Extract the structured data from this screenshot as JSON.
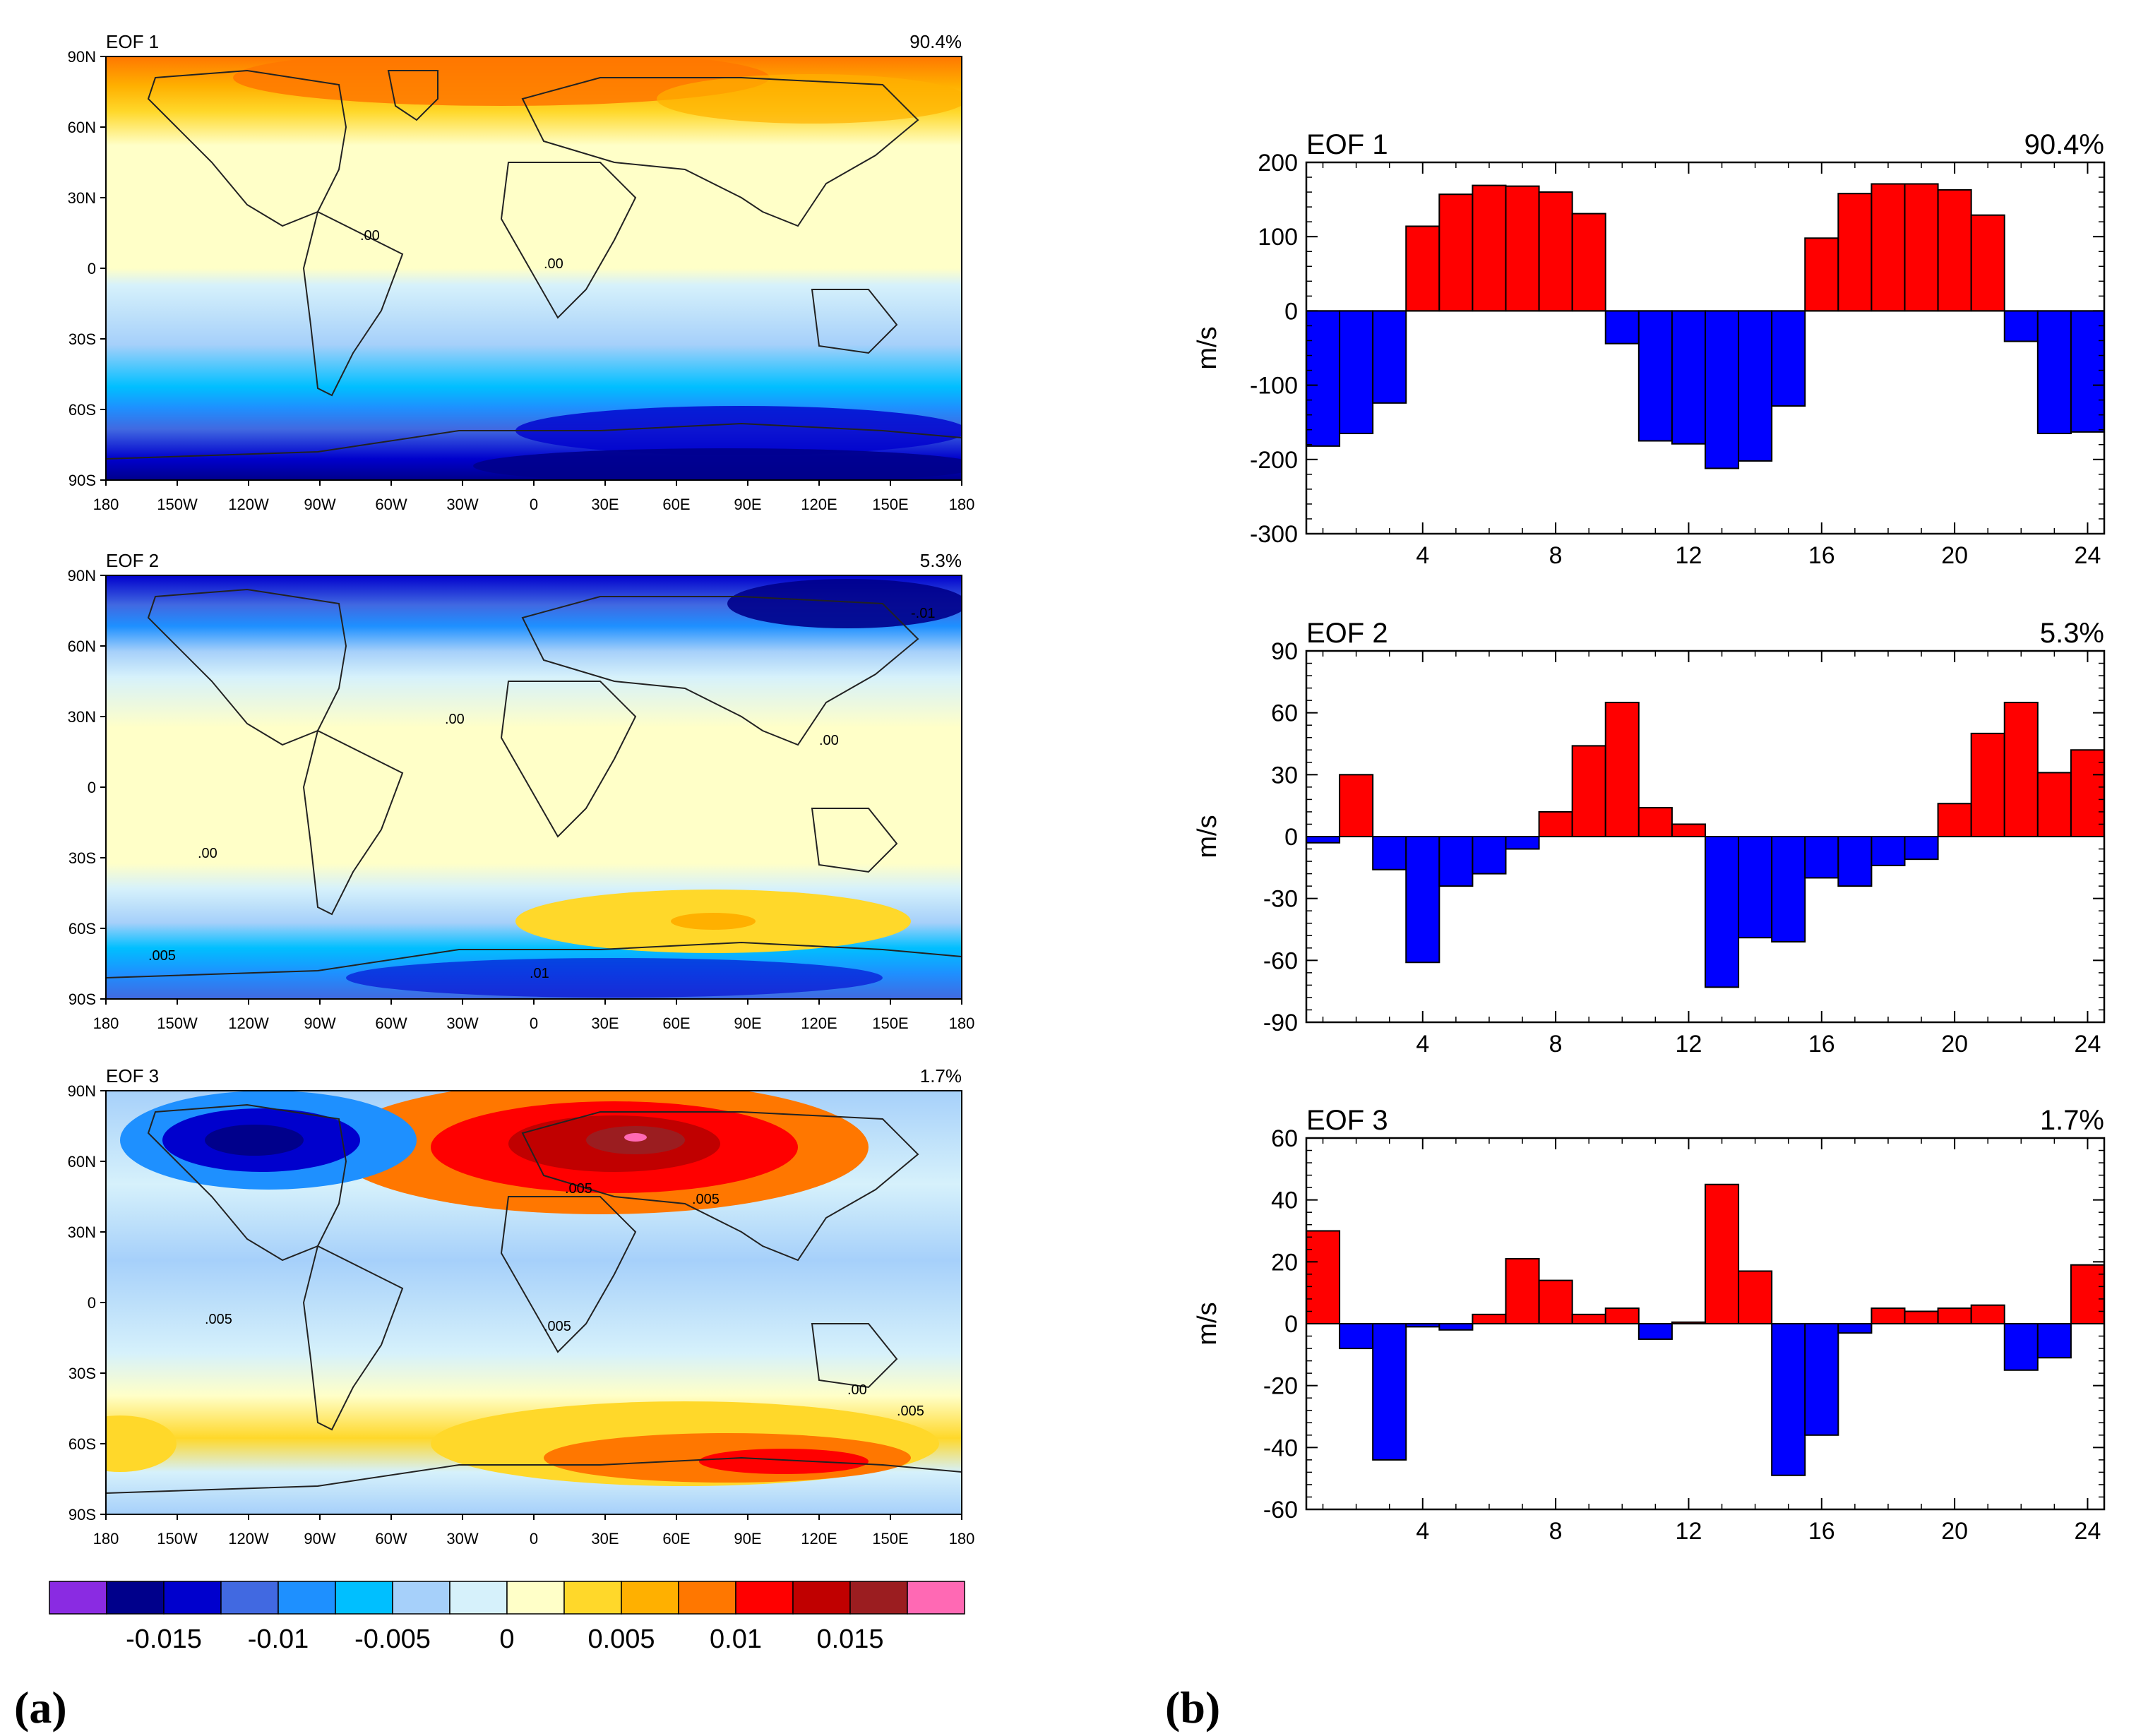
{
  "panel_labels": {
    "a": "(a)",
    "b": "(b)"
  },
  "maps": [
    {
      "title": "EOF 1",
      "percent": "90.4%",
      "contour_labels": [
        ".00",
        ".00"
      ]
    },
    {
      "title": "EOF 2",
      "percent": "5.3%",
      "contour_labels": [
        ".00",
        ".00",
        ".00",
        ".005",
        ".01",
        "-.01"
      ]
    },
    {
      "title": "EOF 3",
      "percent": "1.7%",
      "contour_labels": [
        ".005",
        ".005",
        ".005",
        ".005",
        ".00",
        ".005"
      ]
    }
  ],
  "map_axes": {
    "lat_labels": [
      "90N",
      "60N",
      "30N",
      "0",
      "30S",
      "60S",
      "90S"
    ],
    "lon_labels": [
      "180",
      "150W",
      "120W",
      "90W",
      "60W",
      "30W",
      "0",
      "30E",
      "60E",
      "90E",
      "120E",
      "150E",
      "180"
    ]
  },
  "colorbar": {
    "colors": [
      "#8a2be2",
      "#00008b",
      "#0000cd",
      "#4169e1",
      "#1e90ff",
      "#00bfff",
      "#a6d0fa",
      "#d6f1fb",
      "#ffffc8",
      "#ffd82a",
      "#ffb000",
      "#ff7700",
      "#ff0000",
      "#c00000",
      "#9b1d20",
      "#ff69b4"
    ],
    "labels": [
      "-0.015",
      "-0.01",
      "-0.005",
      "0",
      "0.005",
      "0.01",
      "0.015"
    ]
  },
  "chart_data": [
    {
      "type": "bar",
      "title": "EOF 1",
      "percent": "90.4%",
      "ylabel": "m/s",
      "ylim": [
        -300,
        200
      ],
      "yticks": [
        200,
        100,
        0,
        -100,
        -200,
        -300
      ],
      "xticks": [
        4,
        8,
        12,
        16,
        20,
        24
      ],
      "x": [
        1,
        2,
        3,
        4,
        5,
        6,
        7,
        8,
        9,
        10,
        11,
        12,
        13,
        14,
        15,
        16,
        17,
        18,
        19,
        20,
        21,
        22,
        23,
        24
      ],
      "values": [
        -182,
        -165,
        -124,
        114,
        157,
        169,
        168,
        160,
        131,
        -44,
        -175,
        -179,
        -212,
        -202,
        -128,
        98,
        158,
        171,
        171,
        163,
        129,
        -41,
        -165,
        -163
      ],
      "positive_color": "#ff0000",
      "negative_color": "#0000ff"
    },
    {
      "type": "bar",
      "title": "EOF 2",
      "percent": "5.3%",
      "ylabel": "m/s",
      "ylim": [
        -90,
        90
      ],
      "yticks": [
        90,
        60,
        30,
        0,
        -30,
        -60,
        -90
      ],
      "xticks": [
        4,
        8,
        12,
        16,
        20,
        24
      ],
      "x": [
        1,
        2,
        3,
        4,
        5,
        6,
        7,
        8,
        9,
        10,
        11,
        12,
        13,
        14,
        15,
        16,
        17,
        18,
        19,
        20,
        21,
        22,
        23,
        24
      ],
      "values": [
        -3,
        30,
        -16,
        -61,
        -24,
        -18,
        -6,
        12,
        44,
        65,
        14,
        6,
        -73,
        -49,
        -51,
        -20,
        -24,
        -14,
        -11,
        16,
        50,
        65,
        31,
        42
      ],
      "positive_color": "#ff0000",
      "negative_color": "#0000ff"
    },
    {
      "type": "bar",
      "title": "EOF 3",
      "percent": "1.7%",
      "ylabel": "m/s",
      "ylim": [
        -60,
        60
      ],
      "yticks": [
        60,
        40,
        20,
        0,
        -20,
        -40,
        -60
      ],
      "xticks": [
        4,
        8,
        12,
        16,
        20,
        24
      ],
      "x": [
        1,
        2,
        3,
        4,
        5,
        6,
        7,
        8,
        9,
        10,
        11,
        12,
        13,
        14,
        15,
        16,
        17,
        18,
        19,
        20,
        21,
        22,
        23,
        24
      ],
      "values": [
        30,
        -8,
        -44,
        -1,
        -2,
        3,
        21,
        14,
        3,
        5,
        -5,
        0.5,
        45,
        17,
        -49,
        -36,
        -3,
        5,
        4,
        5,
        6,
        -15,
        -11,
        19
      ],
      "positive_color": "#ff0000",
      "negative_color": "#0000ff"
    }
  ]
}
